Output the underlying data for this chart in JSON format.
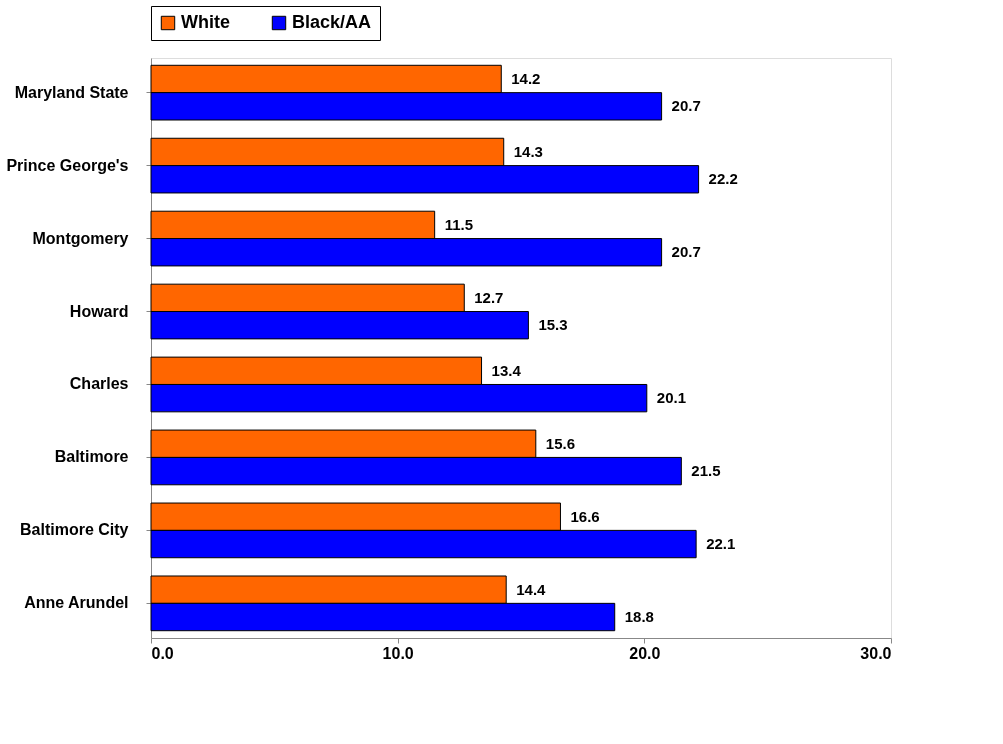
{
  "chart_data": {
    "type": "bar",
    "orientation": "horizontal",
    "categories": [
      "Maryland State",
      "Prince George's",
      "Montgomery",
      "Howard",
      "Charles",
      "Baltimore",
      "Baltimore City",
      "Anne Arundel"
    ],
    "series": [
      {
        "name": "White",
        "color": "#ff6600",
        "values": [
          14.2,
          14.3,
          11.5,
          12.7,
          13.4,
          15.6,
          16.6,
          14.4
        ]
      },
      {
        "name": "Black/AA",
        "color": "#0000ff",
        "values": [
          20.7,
          22.2,
          20.7,
          15.3,
          20.1,
          21.5,
          22.1,
          18.8
        ]
      }
    ],
    "xlim": [
      0,
      30
    ],
    "xticks": [
      {
        "value": 0,
        "label": "0.0"
      },
      {
        "value": 10,
        "label": "10.0"
      },
      {
        "value": 20,
        "label": "20.0"
      },
      {
        "value": 30,
        "label": "30.0"
      }
    ],
    "data_labels": true,
    "grid": false,
    "legend": "top"
  }
}
